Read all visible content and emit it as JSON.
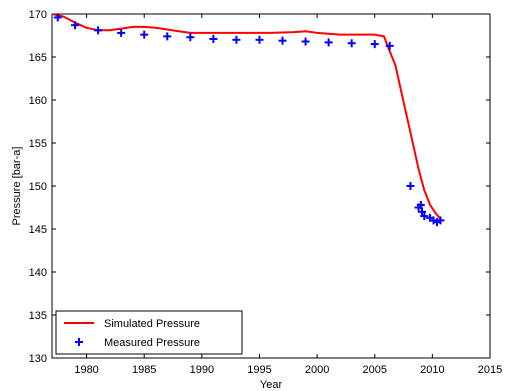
{
  "chart_data": {
    "type": "line",
    "title": "",
    "xlabel": "Year",
    "ylabel": "Pressure [bar-a]",
    "xlim": [
      1977,
      2015
    ],
    "ylim": [
      130,
      170
    ],
    "xticks": [
      1980,
      1985,
      1990,
      1995,
      2000,
      2005,
      2010,
      2015
    ],
    "yticks": [
      130,
      135,
      140,
      145,
      150,
      155,
      160,
      165,
      170
    ],
    "grid": false,
    "legend_position": "bottom-left",
    "series": [
      {
        "name": "Simulated Pressure",
        "kind": "line",
        "color": "#ff0000",
        "x": [
          1977,
          1978,
          1979,
          1980,
          1981,
          1982,
          1983,
          1984,
          1985,
          1986,
          1987,
          1988,
          1989,
          1990,
          1992,
          1994,
          1996,
          1998,
          1999,
          2000,
          2001,
          2002,
          2004,
          2005,
          2005.8,
          2006.2,
          2006.8,
          2007.3,
          2007.8,
          2008.3,
          2008.8,
          2009.3,
          2009.8,
          2010.3,
          2010.8
        ],
        "y": [
          170,
          169.7,
          169,
          168.4,
          168.1,
          168.1,
          168.3,
          168.5,
          168.5,
          168.4,
          168.2,
          168.0,
          167.8,
          167.8,
          167.8,
          167.8,
          167.8,
          167.9,
          168.0,
          167.8,
          167.7,
          167.6,
          167.6,
          167.6,
          167.4,
          166.0,
          164.0,
          161.0,
          158.0,
          155.0,
          152.0,
          149.5,
          147.8,
          146.8,
          146.0
        ]
      },
      {
        "name": "Measured Pressure",
        "kind": "scatter",
        "color": "#0000ff",
        "marker": "+",
        "x": [
          1977.5,
          1979,
          1981,
          1983,
          1985,
          1987,
          1989,
          1991,
          1993,
          1995,
          1997,
          1999,
          2001,
          2003,
          2005,
          2006.3,
          2008.1,
          2008.8,
          2009.0,
          2009.1,
          2009.3,
          2009.8,
          2010.1,
          2010.4,
          2010.7
        ],
        "y": [
          169.6,
          168.7,
          168.1,
          167.8,
          167.6,
          167.4,
          167.3,
          167.1,
          167.0,
          167.0,
          166.9,
          166.8,
          166.7,
          166.6,
          166.5,
          166.3,
          150.0,
          147.5,
          147.8,
          147.0,
          146.5,
          146.3,
          146.0,
          145.8,
          146.0
        ]
      }
    ]
  }
}
